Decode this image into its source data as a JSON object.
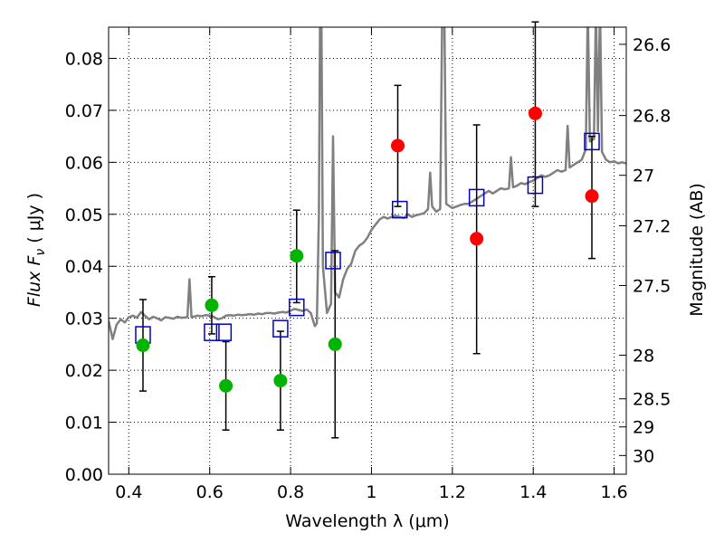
{
  "chart_data": {
    "type": "scatter",
    "xlabel": "Wavelength  λ (μm)",
    "ylabel": "Flux  F",
    "ylabel_sub": "ν",
    "ylabel_unit": " ( μJy )",
    "y2label": "Magnitude (AB)",
    "xlim": [
      0.35,
      1.63
    ],
    "ylim": [
      0.0,
      0.086
    ],
    "grid": true,
    "x_ticks": [
      {
        "value": 0.4,
        "label": "0.4"
      },
      {
        "value": 0.6,
        "label": "0.6"
      },
      {
        "value": 0.8,
        "label": "0.8"
      },
      {
        "value": 1.0,
        "label": "1"
      },
      {
        "value": 1.2,
        "label": "1.2"
      },
      {
        "value": 1.4,
        "label": "1.4"
      },
      {
        "value": 1.6,
        "label": "1.6"
      }
    ],
    "y_ticks": [
      {
        "value": 0.0,
        "label": "0.00"
      },
      {
        "value": 0.01,
        "label": "0.01"
      },
      {
        "value": 0.02,
        "label": "0.02"
      },
      {
        "value": 0.03,
        "label": "0.03"
      },
      {
        "value": 0.04,
        "label": "0.04"
      },
      {
        "value": 0.05,
        "label": "0.05"
      },
      {
        "value": 0.06,
        "label": "0.06"
      },
      {
        "value": 0.07,
        "label": "0.07"
      },
      {
        "value": 0.08,
        "label": "0.08"
      }
    ],
    "y2_ticks": [
      {
        "flux": 0.0827,
        "label": "26.6"
      },
      {
        "flux": 0.069,
        "label": "26.8"
      },
      {
        "flux": 0.0575,
        "label": "27"
      },
      {
        "flux": 0.0478,
        "label": "27.2"
      },
      {
        "flux": 0.0363,
        "label": "27.5"
      },
      {
        "flux": 0.0229,
        "label": "28"
      },
      {
        "flux": 0.0145,
        "label": "28.5"
      },
      {
        "flux": 0.0091,
        "label": "29"
      },
      {
        "flux": 0.0036,
        "label": "30"
      }
    ],
    "colors": {
      "model": "#808080",
      "open_box": "#0000cc",
      "green": "#00b400",
      "red": "#ff0000",
      "error": "#000000"
    },
    "model_spectrum": [
      [
        0.35,
        0.0295
      ],
      [
        0.36,
        0.026
      ],
      [
        0.37,
        0.0288
      ],
      [
        0.38,
        0.0298
      ],
      [
        0.39,
        0.0292
      ],
      [
        0.4,
        0.0302
      ],
      [
        0.41,
        0.0305
      ],
      [
        0.42,
        0.0301
      ],
      [
        0.43,
        0.0312
      ],
      [
        0.44,
        0.0305
      ],
      [
        0.45,
        0.0298
      ],
      [
        0.46,
        0.0303
      ],
      [
        0.47,
        0.03
      ],
      [
        0.48,
        0.0296
      ],
      [
        0.49,
        0.0302
      ],
      [
        0.5,
        0.0301
      ],
      [
        0.51,
        0.0299
      ],
      [
        0.52,
        0.0303
      ],
      [
        0.53,
        0.0301
      ],
      [
        0.545,
        0.0302
      ],
      [
        0.55,
        0.0375
      ],
      [
        0.555,
        0.0302
      ],
      [
        0.57,
        0.0305
      ],
      [
        0.58,
        0.0304
      ],
      [
        0.59,
        0.0306
      ],
      [
        0.6,
        0.0305
      ],
      [
        0.61,
        0.0303
      ],
      [
        0.62,
        0.0298
      ],
      [
        0.63,
        0.03
      ],
      [
        0.64,
        0.0305
      ],
      [
        0.65,
        0.0306
      ],
      [
        0.66,
        0.0305
      ],
      [
        0.67,
        0.0307
      ],
      [
        0.68,
        0.0306
      ],
      [
        0.69,
        0.0307
      ],
      [
        0.7,
        0.0308
      ],
      [
        0.71,
        0.0307
      ],
      [
        0.72,
        0.0309
      ],
      [
        0.73,
        0.0308
      ],
      [
        0.74,
        0.031
      ],
      [
        0.75,
        0.031
      ],
      [
        0.76,
        0.0309
      ],
      [
        0.77,
        0.0311
      ],
      [
        0.78,
        0.0312
      ],
      [
        0.79,
        0.0311
      ],
      [
        0.8,
        0.0315
      ],
      [
        0.81,
        0.0318
      ],
      [
        0.82,
        0.0316
      ],
      [
        0.83,
        0.0314
      ],
      [
        0.84,
        0.0317
      ],
      [
        0.85,
        0.031
      ],
      [
        0.86,
        0.0285
      ],
      [
        0.865,
        0.029
      ],
      [
        0.87,
        0.05
      ],
      [
        0.873,
        0.09
      ],
      [
        0.876,
        0.09
      ],
      [
        0.88,
        0.04
      ],
      [
        0.89,
        0.031
      ],
      [
        0.9,
        0.0328
      ],
      [
        0.905,
        0.065
      ],
      [
        0.91,
        0.035
      ],
      [
        0.92,
        0.034
      ],
      [
        0.93,
        0.0375
      ],
      [
        0.94,
        0.0395
      ],
      [
        0.95,
        0.0405
      ],
      [
        0.96,
        0.043
      ],
      [
        0.97,
        0.044
      ],
      [
        0.98,
        0.0445
      ],
      [
        0.99,
        0.0455
      ],
      [
        1.0,
        0.047
      ],
      [
        1.01,
        0.048
      ],
      [
        1.02,
        0.049
      ],
      [
        1.03,
        0.0495
      ],
      [
        1.04,
        0.0492
      ],
      [
        1.05,
        0.0495
      ],
      [
        1.06,
        0.0497
      ],
      [
        1.07,
        0.0495
      ],
      [
        1.08,
        0.0493
      ],
      [
        1.09,
        0.05
      ],
      [
        1.1,
        0.0495
      ],
      [
        1.11,
        0.0498
      ],
      [
        1.12,
        0.05
      ],
      [
        1.13,
        0.0502
      ],
      [
        1.14,
        0.051
      ],
      [
        1.145,
        0.058
      ],
      [
        1.15,
        0.0515
      ],
      [
        1.16,
        0.0505
      ],
      [
        1.17,
        0.051
      ],
      [
        1.175,
        0.09
      ],
      [
        1.18,
        0.09
      ],
      [
        1.185,
        0.052
      ],
      [
        1.2,
        0.0512
      ],
      [
        1.21,
        0.0515
      ],
      [
        1.22,
        0.0518
      ],
      [
        1.23,
        0.052
      ],
      [
        1.24,
        0.052
      ],
      [
        1.25,
        0.0525
      ],
      [
        1.26,
        0.053
      ],
      [
        1.27,
        0.0535
      ],
      [
        1.28,
        0.054
      ],
      [
        1.29,
        0.0545
      ],
      [
        1.3,
        0.054
      ],
      [
        1.31,
        0.0545
      ],
      [
        1.32,
        0.055
      ],
      [
        1.33,
        0.0548
      ],
      [
        1.34,
        0.055
      ],
      [
        1.345,
        0.061
      ],
      [
        1.35,
        0.0552
      ],
      [
        1.36,
        0.0555
      ],
      [
        1.37,
        0.056
      ],
      [
        1.38,
        0.0558
      ],
      [
        1.39,
        0.0562
      ],
      [
        1.4,
        0.0565
      ],
      [
        1.41,
        0.057
      ],
      [
        1.42,
        0.0575
      ],
      [
        1.43,
        0.0572
      ],
      [
        1.44,
        0.0575
      ],
      [
        1.45,
        0.058
      ],
      [
        1.46,
        0.0585
      ],
      [
        1.47,
        0.0582
      ],
      [
        1.48,
        0.0585
      ],
      [
        1.485,
        0.067
      ],
      [
        1.49,
        0.059
      ],
      [
        1.5,
        0.0595
      ],
      [
        1.51,
        0.06
      ],
      [
        1.52,
        0.0605
      ],
      [
        1.53,
        0.0625
      ],
      [
        1.535,
        0.09
      ],
      [
        1.54,
        0.064
      ],
      [
        1.55,
        0.0645
      ],
      [
        1.555,
        0.09
      ],
      [
        1.56,
        0.066
      ],
      [
        1.565,
        0.09
      ],
      [
        1.57,
        0.062
      ],
      [
        1.58,
        0.0605
      ],
      [
        1.59,
        0.06
      ],
      [
        1.6,
        0.0602
      ],
      [
        1.61,
        0.0598
      ],
      [
        1.62,
        0.06
      ],
      [
        1.63,
        0.0598
      ]
    ],
    "series": [
      {
        "marker": "open-square",
        "points": [
          {
            "x": 0.435,
            "y": 0.0268
          },
          {
            "x": 0.605,
            "y": 0.0273
          },
          {
            "x": 0.635,
            "y": 0.0273
          },
          {
            "x": 0.775,
            "y": 0.028
          },
          {
            "x": 0.815,
            "y": 0.0321
          },
          {
            "x": 0.905,
            "y": 0.0411
          },
          {
            "x": 1.07,
            "y": 0.0509
          },
          {
            "x": 1.26,
            "y": 0.0532
          },
          {
            "x": 1.405,
            "y": 0.0556
          },
          {
            "x": 1.545,
            "y": 0.064
          }
        ]
      },
      {
        "marker": "green-circle",
        "points": [
          {
            "x": 0.435,
            "y": 0.0248,
            "err": [
              0.016,
              0.0336
            ]
          },
          {
            "x": 0.605,
            "y": 0.0325,
            "err": [
              0.027,
              0.038
            ]
          },
          {
            "x": 0.64,
            "y": 0.017,
            "err": [
              0.0085,
              0.0255
            ]
          },
          {
            "x": 0.775,
            "y": 0.018,
            "err": [
              0.0085,
              0.0275
            ]
          },
          {
            "x": 0.815,
            "y": 0.042,
            "err": [
              0.033,
              0.0508
            ]
          },
          {
            "x": 0.91,
            "y": 0.025,
            "err": [
              0.007,
              0.043
            ]
          }
        ]
      },
      {
        "marker": "red-circle",
        "points": [
          {
            "x": 1.065,
            "y": 0.0632,
            "err": [
              0.0515,
              0.0748
            ]
          },
          {
            "x": 1.26,
            "y": 0.0453,
            "err": [
              0.0232,
              0.0672
            ]
          },
          {
            "x": 1.405,
            "y": 0.0694,
            "err": [
              0.0515,
              0.087
            ]
          },
          {
            "x": 1.545,
            "y": 0.0535,
            "err": [
              0.0415,
              0.065
            ]
          }
        ]
      }
    ]
  }
}
